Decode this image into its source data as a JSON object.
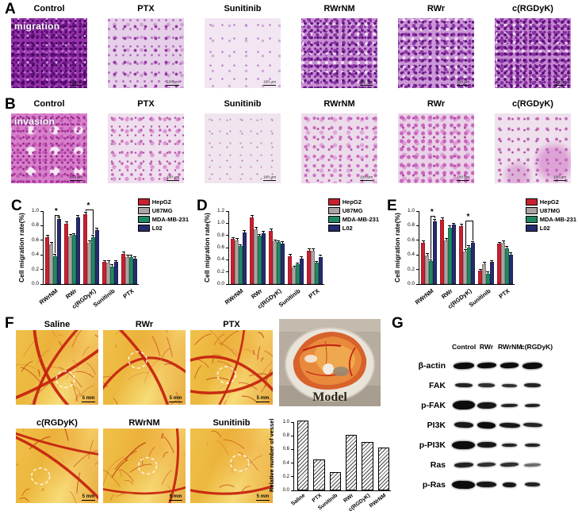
{
  "panelA": {
    "label": "A",
    "overlay": "migration",
    "scale_bar": "100 μm",
    "columns": [
      {
        "label": "Control",
        "texture": "a-control"
      },
      {
        "label": "PTX",
        "texture": "a-ptx"
      },
      {
        "label": "Sunitinib",
        "texture": "a-sunitinib"
      },
      {
        "label": "RWrNM",
        "texture": "a-rwrnm"
      },
      {
        "label": "RWr",
        "texture": "a-rwr"
      },
      {
        "label": "c(RGDyK)",
        "texture": "a-rgdyk"
      }
    ]
  },
  "panelB": {
    "label": "B",
    "overlay": "invasion",
    "scale_bar": "100 μm",
    "columns": [
      {
        "label": "Control",
        "texture": "b-control"
      },
      {
        "label": "PTX",
        "texture": "b-ptx"
      },
      {
        "label": "Sunitinib",
        "texture": "b-sunitinib"
      },
      {
        "label": "RWrNM",
        "texture": "b-rwrnm"
      },
      {
        "label": "RWr",
        "texture": "b-rwr"
      },
      {
        "label": "c(RGDyK)",
        "texture": "b-rgdyk"
      }
    ]
  },
  "series_colors": {
    "HepG2": "#c8202f",
    "U87MG": "#ada3a3",
    "MDA-MB-231": "#1f8a62",
    "L02": "#252b6d"
  },
  "chart_data": [
    {
      "panel": "C",
      "type": "bar",
      "ylabel": "Cell migration rate(%)",
      "ylim": [
        0,
        1.0
      ],
      "yticks": [
        0.0,
        0.2,
        0.4,
        0.6,
        0.8,
        1.0
      ],
      "categories": [
        "RWrNM",
        "RWr",
        "c(RGDyK)",
        "Sunitinib",
        "PTX"
      ],
      "series": [
        {
          "name": "HepG2",
          "color": "#c8202f",
          "values": [
            0.64,
            0.83,
            0.96,
            0.3,
            0.41
          ]
        },
        {
          "name": "U87MG",
          "color": "#ada3a3",
          "values": [
            0.54,
            0.65,
            0.57,
            0.29,
            0.37
          ]
        },
        {
          "name": "MDA-MB-231",
          "color": "#1f8a62",
          "values": [
            0.38,
            0.67,
            0.64,
            0.24,
            0.37
          ]
        },
        {
          "name": "L02",
          "color": "#252b6d",
          "values": [
            0.89,
            0.91,
            0.74,
            0.3,
            0.35
          ]
        }
      ],
      "err": 0.02,
      "grid": false,
      "legend_position": "top-right",
      "sig": [
        {
          "cat": 0,
          "from": 2,
          "to": 3,
          "y": 0.95,
          "label": "*"
        },
        {
          "cat": 2,
          "from": 0,
          "to": 2,
          "y": 1.02,
          "label": "*"
        }
      ]
    },
    {
      "panel": "D",
      "type": "bar",
      "ylabel": "Cell migration rate(%)",
      "ylim": [
        0,
        1.2
      ],
      "yticks": [
        0.0,
        0.2,
        0.4,
        0.6,
        0.8,
        1.0,
        1.2
      ],
      "categories": [
        "RWrNM",
        "RWr",
        "c(RGDyK)",
        "Sunitinib",
        "PTX"
      ],
      "series": [
        {
          "name": "HepG2",
          "color": "#c8202f",
          "values": [
            0.74,
            1.1,
            0.88,
            0.46,
            0.55
          ]
        },
        {
          "name": "U87MG",
          "color": "#ada3a3",
          "values": [
            0.72,
            0.9,
            0.7,
            0.27,
            0.55
          ]
        },
        {
          "name": "MDA-MB-231",
          "color": "#1f8a62",
          "values": [
            0.62,
            0.79,
            0.69,
            0.32,
            0.35
          ]
        },
        {
          "name": "L02",
          "color": "#252b6d",
          "values": [
            0.85,
            0.84,
            0.67,
            0.42,
            0.45
          ]
        }
      ],
      "err": 0.02,
      "grid": false,
      "legend_position": "top-right",
      "sig": []
    },
    {
      "panel": "E",
      "type": "bar",
      "ylabel": "Cell migration rate(%)",
      "ylim": [
        0,
        1.0
      ],
      "yticks": [
        0.0,
        0.2,
        0.4,
        0.6,
        0.8,
        1.0
      ],
      "categories": [
        "RWrNM",
        "RWr",
        "c(RGDyK)",
        "Sunitinib",
        "PTX"
      ],
      "series": [
        {
          "name": "HepG2",
          "color": "#c8202f",
          "values": [
            0.57,
            0.88,
            0.79,
            0.18,
            0.55
          ]
        },
        {
          "name": "U87MG",
          "color": "#ada3a3",
          "values": [
            0.39,
            0.6,
            0.45,
            0.27,
            0.57
          ]
        },
        {
          "name": "MDA-MB-231",
          "color": "#1f8a62",
          "values": [
            0.31,
            0.77,
            0.5,
            0.14,
            0.49
          ]
        },
        {
          "name": "L02",
          "color": "#252b6d",
          "values": [
            0.86,
            0.81,
            0.56,
            0.3,
            0.4
          ]
        }
      ],
      "err": 0.02,
      "grid": false,
      "legend_position": "top-right",
      "sig": [
        {
          "cat": 0,
          "from": 2,
          "to": 3,
          "y": 0.93,
          "label": "*"
        },
        {
          "cat": 2,
          "from": 1,
          "to": 3,
          "y": 0.87,
          "label": "*"
        }
      ]
    },
    {
      "panel": "F-vessel",
      "type": "bar",
      "style": "hatched",
      "ylabel": "Relative number of vessel",
      "ylim": [
        0,
        1.0
      ],
      "yticks": [
        0.0,
        0.2,
        0.4,
        0.6,
        0.8,
        1.0
      ],
      "categories": [
        "Saline",
        "PTX",
        "Sunitinib",
        "RWr",
        "c(RGDyK)",
        "RWrNM"
      ],
      "values": [
        1.0,
        0.43,
        0.24,
        0.79,
        0.69,
        0.6
      ],
      "grid": false
    }
  ],
  "panelF": {
    "label": "F",
    "scale_bar": "5 mm",
    "model_label": "Model",
    "images": [
      {
        "label": "Saline",
        "seed": 11,
        "main": 3,
        "branch": 26,
        "circle": [
          60,
          66
        ]
      },
      {
        "label": "RWr",
        "seed": 22,
        "main": 2,
        "branch": 16,
        "circle": [
          42,
          40
        ]
      },
      {
        "label": "PTX",
        "seed": 33,
        "main": 3,
        "branch": 30,
        "circle": [
          44,
          60
        ]
      },
      {
        "label": "c(RGDyK)",
        "seed": 44,
        "main": 2,
        "branch": 14,
        "circle": [
          30,
          64
        ]
      },
      {
        "label": "RWrNM",
        "seed": 55,
        "main": 2,
        "branch": 20,
        "circle": [
          54,
          50
        ]
      },
      {
        "label": "Sunitinib",
        "seed": 66,
        "main": 1,
        "branch": 12,
        "circle": [
          60,
          46
        ]
      }
    ]
  },
  "panelG": {
    "label": "G",
    "columns": [
      "Control",
      "RWr",
      "RWrNM",
      "c(RGDyK)"
    ],
    "rows": [
      {
        "label": "β-actin",
        "bands": [
          [
            26,
            8,
            1
          ],
          [
            24,
            7,
            1
          ],
          [
            23,
            7,
            1
          ],
          [
            25,
            8,
            1
          ]
        ]
      },
      {
        "label": "FAK",
        "bands": [
          [
            22,
            5,
            0.9
          ],
          [
            21,
            5,
            0.85
          ],
          [
            19,
            4,
            0.85
          ],
          [
            21,
            5,
            0.9
          ]
        ]
      },
      {
        "label": "p-FAK",
        "bands": [
          [
            28,
            11,
            1
          ],
          [
            24,
            8,
            0.95
          ],
          [
            21,
            4,
            0.9
          ],
          [
            19,
            4,
            0.9
          ]
        ]
      },
      {
        "label": "PI3K",
        "bands": [
          [
            24,
            7,
            0.95
          ],
          [
            23,
            8,
            1
          ],
          [
            26,
            6,
            0.95
          ],
          [
            24,
            5,
            0.9
          ]
        ]
      },
      {
        "label": "p-PI3K",
        "bands": [
          [
            30,
            10,
            1
          ],
          [
            24,
            7,
            0.95
          ],
          [
            19,
            4,
            0.9
          ],
          [
            19,
            4,
            0.9
          ]
        ]
      },
      {
        "label": "Ras",
        "bands": [
          [
            24,
            6,
            0.9
          ],
          [
            23,
            5,
            0.85
          ],
          [
            23,
            5,
            0.85
          ],
          [
            21,
            4,
            0.6
          ]
        ]
      },
      {
        "label": "p-Ras",
        "bands": [
          [
            30,
            10,
            1
          ],
          [
            25,
            7,
            0.95
          ],
          [
            17,
            6,
            0.95
          ],
          [
            19,
            5,
            0.9
          ]
        ]
      }
    ]
  }
}
